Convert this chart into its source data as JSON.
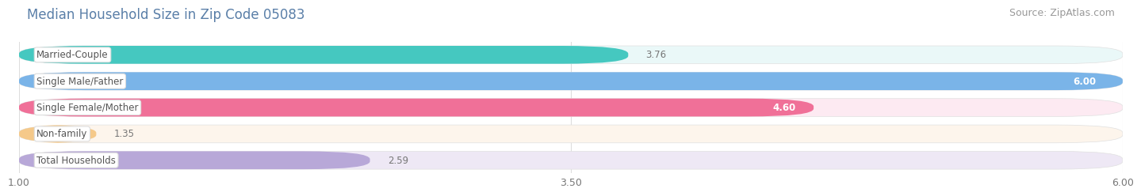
{
  "title": "Median Household Size in Zip Code 05083",
  "source": "Source: ZipAtlas.com",
  "categories": [
    "Married-Couple",
    "Single Male/Father",
    "Single Female/Mother",
    "Non-family",
    "Total Households"
  ],
  "values": [
    3.76,
    6.0,
    4.6,
    1.35,
    2.59
  ],
  "bar_colors": [
    "#45C8C0",
    "#7AB4E8",
    "#F07098",
    "#F5C98A",
    "#B8A8D8"
  ],
  "bar_bg_colors": [
    "#EAF8F8",
    "#E8F2FC",
    "#FDEAF2",
    "#FDF5EC",
    "#EEE8F5"
  ],
  "xlim_min": 1.0,
  "xlim_max": 6.0,
  "xticks": [
    1.0,
    3.5,
    6.0
  ],
  "xtick_labels": [
    "1.00",
    "3.50",
    "6.00"
  ],
  "title_fontsize": 12,
  "source_fontsize": 9,
  "label_fontsize": 8.5,
  "value_fontsize": 8.5,
  "background_color": "#ffffff",
  "title_color": "#5a7fa8",
  "source_color": "#999999",
  "label_color": "#555555",
  "value_color_inside": "#ffffff",
  "value_color_outside": "#777777",
  "grid_color": "#dddddd"
}
